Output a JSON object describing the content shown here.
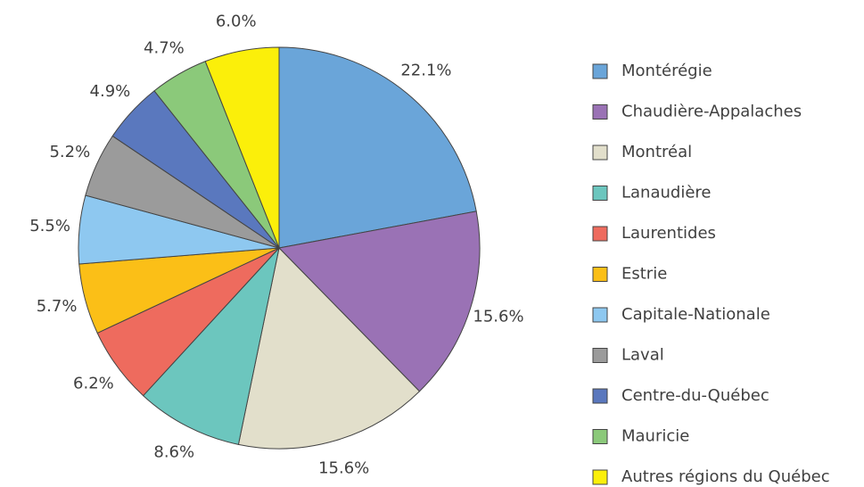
{
  "chart_data": {
    "type": "pie",
    "categories": [
      "Montérégie",
      "Chaudière-Appalaches",
      "Montréal",
      "Lanaudière",
      "Laurentides",
      "Estrie",
      "Capitale-Nationale",
      "Laval",
      "Centre-du-Québec",
      "Mauricie",
      "Autres régions du Québec"
    ],
    "values": [
      22.1,
      15.6,
      15.6,
      8.6,
      6.2,
      5.7,
      5.5,
      5.2,
      4.9,
      4.7,
      6.0
    ],
    "value_labels": [
      "22.1%",
      "15.6%",
      "15.6%",
      "8.6%",
      "6.2%",
      "5.7%",
      "5.5%",
      "5.2%",
      "4.9%",
      "4.7%",
      "6.0%"
    ],
    "colors": [
      "#6aa5d9",
      "#9a72b5",
      "#e2dfcb",
      "#6cc6be",
      "#ee6b5e",
      "#fbbf17",
      "#8ec8f0",
      "#9b9b9b",
      "#5a78be",
      "#8bc97a",
      "#fbef0a"
    ],
    "legend": "right"
  }
}
